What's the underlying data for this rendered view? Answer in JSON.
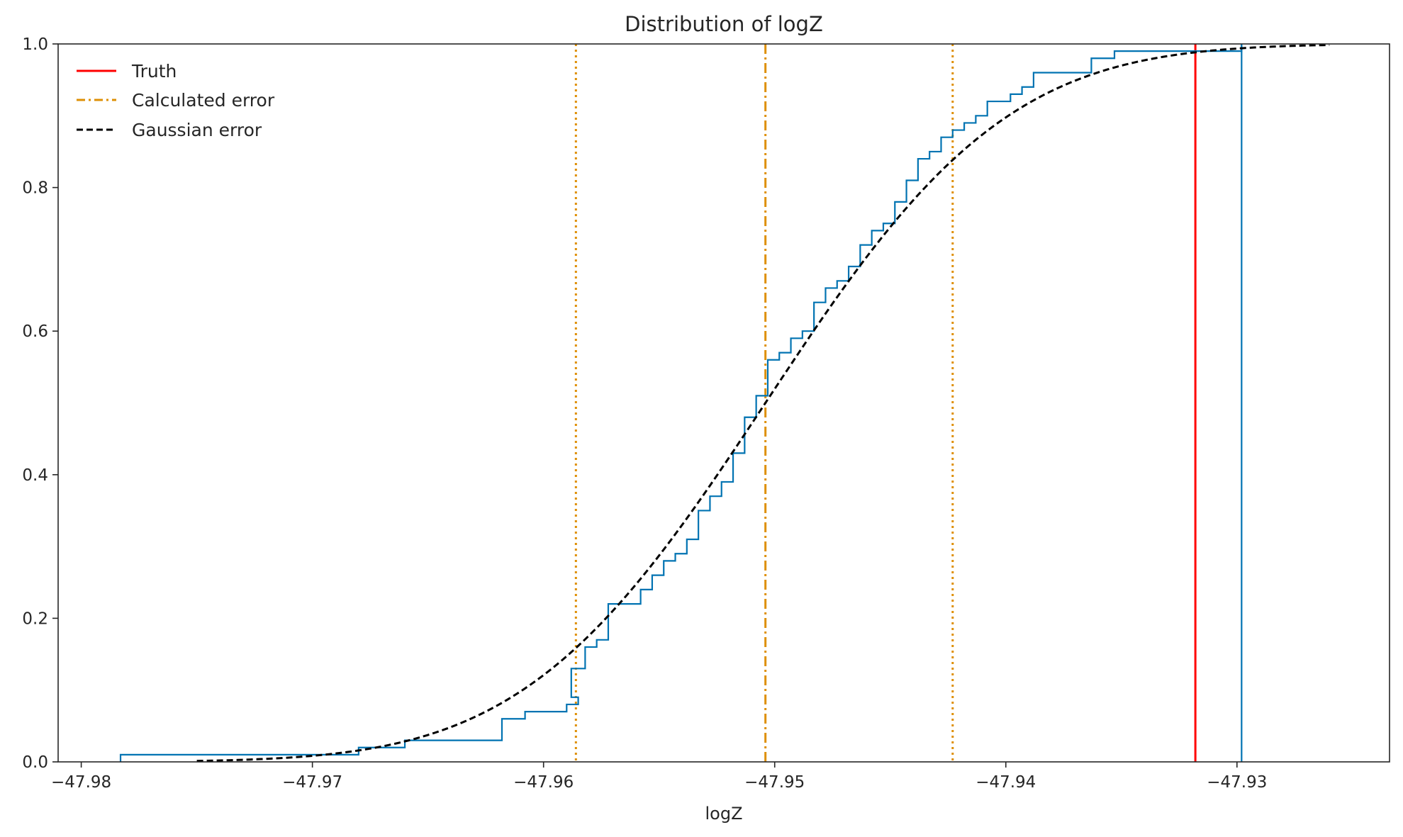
{
  "chart_data": {
    "type": "line",
    "title": "Distribution of logZ",
    "xlabel": "logZ",
    "ylabel": "",
    "xlim": [
      -47.981,
      -47.9234
    ],
    "ylim": [
      0,
      1.0
    ],
    "xticks": [
      -47.98,
      -47.97,
      -47.96,
      -47.95,
      -47.94,
      -47.93
    ],
    "xtick_labels": [
      "−47.98",
      "−47.97",
      "−47.96",
      "−47.95",
      "−47.94",
      "−47.93"
    ],
    "yticks": [
      0.0,
      0.2,
      0.4,
      0.6,
      0.8,
      1.0
    ],
    "ytick_labels": [
      "0.0",
      "0.2",
      "0.4",
      "0.6",
      "0.8",
      "1.0"
    ],
    "grid": false,
    "legend_position": "upper-left",
    "legend": [
      {
        "label": "Truth",
        "color": "#ff0000",
        "style": "solid"
      },
      {
        "label": "Calculated error",
        "color": "#de8f05",
        "style": "dashdot"
      },
      {
        "label": "Gaussian error",
        "color": "#000000",
        "style": "dashed"
      }
    ],
    "ecdf": {
      "color": "#0173b2",
      "steps": [
        [
          -47.9783,
          0.01
        ],
        [
          -47.968,
          0.02
        ],
        [
          -47.966,
          0.03
        ],
        [
          -47.9618,
          0.06
        ],
        [
          -47.9608,
          0.07
        ],
        [
          -47.959,
          0.08
        ],
        [
          -47.9585,
          0.09
        ],
        [
          -47.9588,
          0.13
        ],
        [
          -47.9582,
          0.16
        ],
        [
          -47.9577,
          0.17
        ],
        [
          -47.9572,
          0.22
        ],
        [
          -47.9558,
          0.24
        ],
        [
          -47.9553,
          0.26
        ],
        [
          -47.9548,
          0.28
        ],
        [
          -47.9543,
          0.29
        ],
        [
          -47.9538,
          0.31
        ],
        [
          -47.9533,
          0.35
        ],
        [
          -47.9528,
          0.37
        ],
        [
          -47.9523,
          0.39
        ],
        [
          -47.9518,
          0.43
        ],
        [
          -47.9513,
          0.48
        ],
        [
          -47.9508,
          0.51
        ],
        [
          -47.9503,
          0.56
        ],
        [
          -47.9498,
          0.57
        ],
        [
          -47.9493,
          0.59
        ],
        [
          -47.9488,
          0.6
        ],
        [
          -47.9483,
          0.64
        ],
        [
          -47.9478,
          0.66
        ],
        [
          -47.9473,
          0.67
        ],
        [
          -47.9468,
          0.69
        ],
        [
          -47.9463,
          0.72
        ],
        [
          -47.9458,
          0.74
        ],
        [
          -47.9453,
          0.75
        ],
        [
          -47.9448,
          0.78
        ],
        [
          -47.9443,
          0.81
        ],
        [
          -47.9438,
          0.84
        ],
        [
          -47.9433,
          0.85
        ],
        [
          -47.9428,
          0.87
        ],
        [
          -47.9423,
          0.88
        ],
        [
          -47.9418,
          0.89
        ],
        [
          -47.9413,
          0.9
        ],
        [
          -47.9408,
          0.92
        ],
        [
          -47.9398,
          0.93
        ],
        [
          -47.9393,
          0.94
        ],
        [
          -47.9388,
          0.96
        ],
        [
          -47.9363,
          0.98
        ],
        [
          -47.9353,
          0.99
        ],
        [
          -47.9298,
          1.0
        ]
      ],
      "x_end": -47.9298
    },
    "truth": {
      "x": -47.9318,
      "color": "#ff0000"
    },
    "calculated": {
      "mean": -47.9504,
      "lower": -47.9586,
      "upper": -47.9423,
      "color": "#de8f05"
    },
    "gaussian": {
      "mean": -47.9504,
      "sigma": 0.0082,
      "x_range": [
        -47.975,
        -47.926
      ],
      "color": "#000000"
    }
  }
}
